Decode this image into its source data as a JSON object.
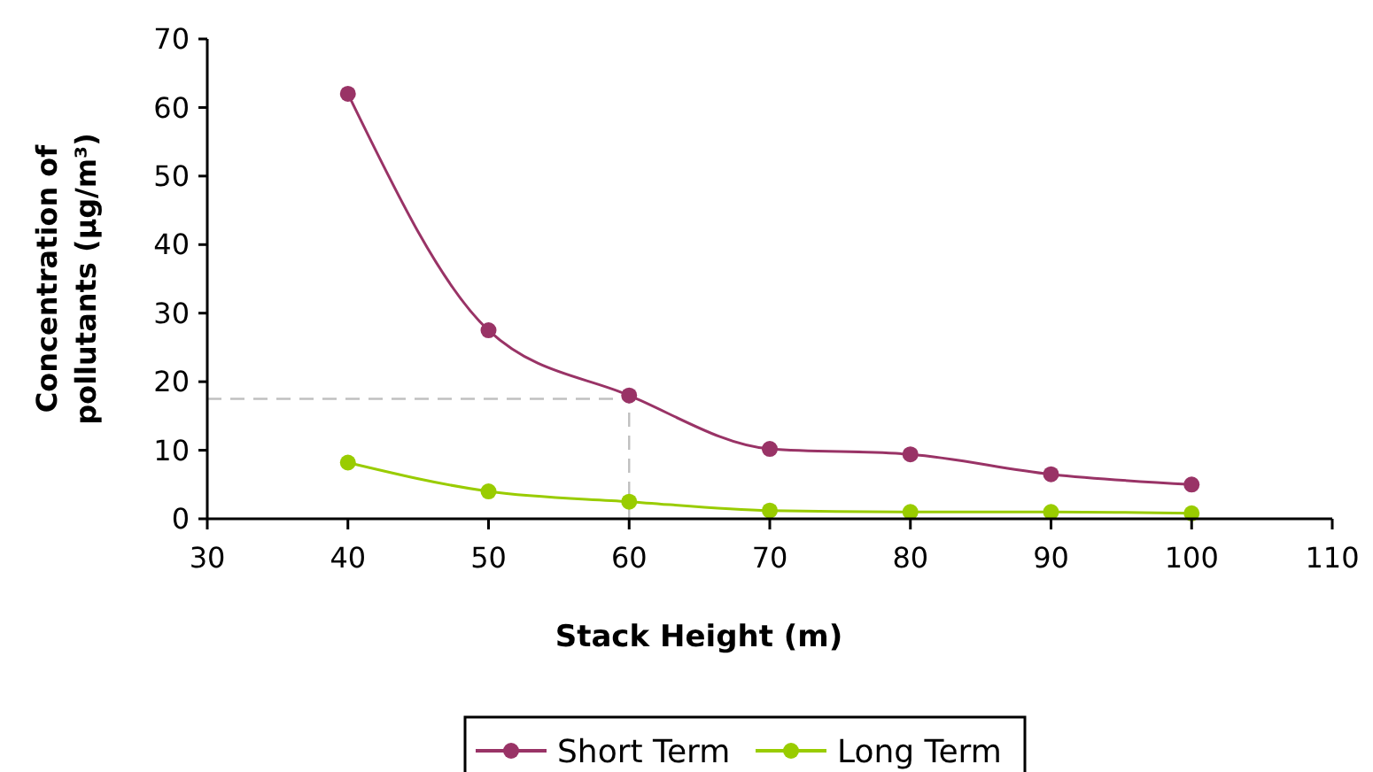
{
  "chart_data": {
    "type": "line",
    "xlabel": "Stack Height (m)",
    "ylabel": "Concentration of pollutants (µg/m³)",
    "x": [
      40,
      50,
      60,
      70,
      80,
      90,
      100
    ],
    "series": [
      {
        "name": "Short Term",
        "color": "#993366",
        "values": [
          62,
          27.5,
          18,
          10.2,
          9.4,
          6.5,
          5
        ]
      },
      {
        "name": "Long Term",
        "color": "#99cc00",
        "values": [
          8.2,
          4,
          2.5,
          1.2,
          1,
          1,
          0.8
        ]
      }
    ],
    "xlim": [
      30,
      110
    ],
    "xticks": [
      30,
      40,
      50,
      60,
      70,
      80,
      90,
      100,
      110
    ],
    "ylim": [
      0,
      70
    ],
    "yticks": [
      0,
      10,
      20,
      30,
      40,
      50,
      60,
      70
    ],
    "ref_lines": [
      {
        "axis": "y",
        "value": 17.5,
        "color": "#c0c0c0",
        "line_style": "dashed"
      },
      {
        "axis": "x",
        "value": 60,
        "color": "#c0c0c0",
        "line_style": "dashed"
      }
    ],
    "grid": false,
    "legend": "bottom",
    "marker": "circle",
    "line_style": "solid"
  }
}
